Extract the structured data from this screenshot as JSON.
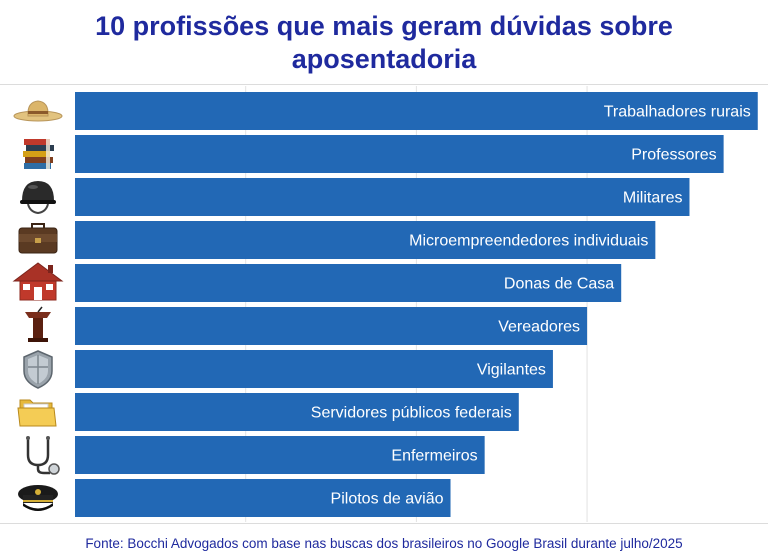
{
  "title_line1": "10 profissões que mais geram dúvidas sobre",
  "title_line2": "aposentadoria",
  "source": "Fonte: Bocchi Advogados com base nas buscas dos brasileiros no Google Brasil durante julho/2025",
  "colors": {
    "bar": "#2268b5",
    "title": "#1f2a9e",
    "grid": "#e3e3e3"
  },
  "chart_data": {
    "type": "bar",
    "orientation": "horizontal",
    "title": "10 profissões que mais geram dúvidas sobre aposentadoria",
    "categories": [
      "Trabalhadores rurais",
      "Professores",
      "Militares",
      "Microempreendedores individuais",
      "Donas de Casa",
      "Vereadores",
      "Vigilantes",
      "Servidores públicos federais",
      "Enfermeiros",
      "Pilotos de avião"
    ],
    "values": [
      10,
      9.5,
      9,
      8.5,
      8,
      7.5,
      7,
      6.5,
      6,
      5.5
    ],
    "icons": [
      "straw-hat-icon",
      "books-icon",
      "military-helmet-icon",
      "briefcase-icon",
      "house-icon",
      "podium-icon",
      "shield-icon",
      "folders-icon",
      "stethoscope-icon",
      "pilot-cap-icon"
    ],
    "xlim": [
      0,
      10.15
    ],
    "xlabel": "",
    "ylabel": "",
    "grid": true,
    "legend": "none"
  }
}
